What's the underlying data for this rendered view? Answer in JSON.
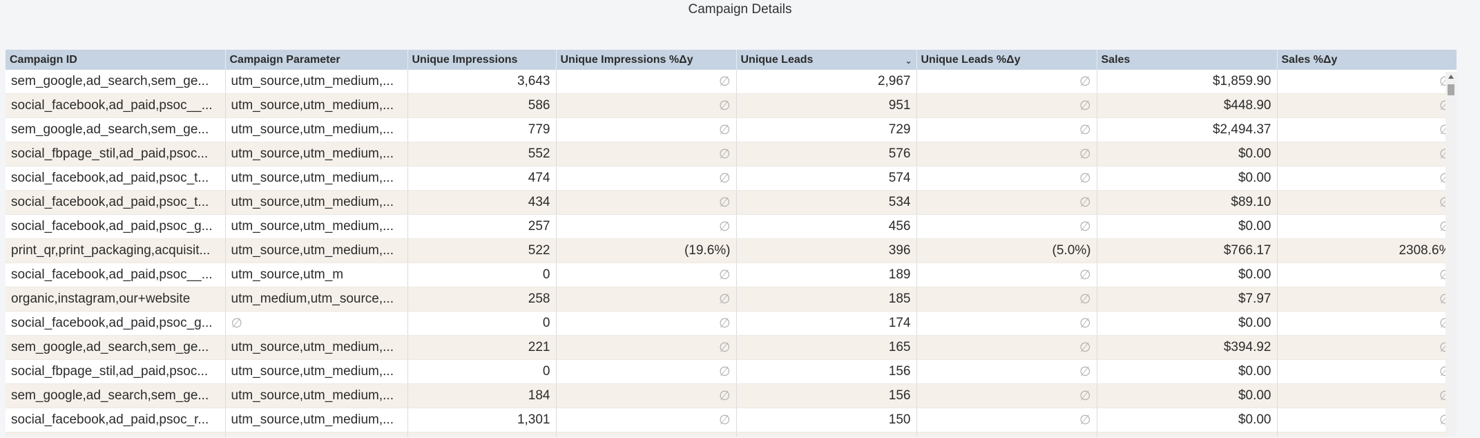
{
  "page": {
    "title": "Campaign Details"
  },
  "table": {
    "columns": [
      "Campaign ID",
      "Campaign Parameter",
      "Unique Impressions",
      "Unique Impressions %Δy",
      "Unique Leads",
      "Unique Leads %Δy",
      "Sales",
      "Sales %Δy"
    ],
    "sorted_column_icon": "chevron-down-icon",
    "null_symbol": "∅",
    "rows": [
      [
        "sem_google,ad_search,sem_ge...",
        "utm_source,utm_medium,...",
        "3,643",
        "∅",
        "2,967",
        "∅",
        "$1,859.90",
        "∅"
      ],
      [
        "social_facebook,ad_paid,psoc__...",
        "utm_source,utm_medium,...",
        "586",
        "∅",
        "951",
        "∅",
        "$448.90",
        "∅"
      ],
      [
        "sem_google,ad_search,sem_ge...",
        "utm_source,utm_medium,...",
        "779",
        "∅",
        "729",
        "∅",
        "$2,494.37",
        "∅"
      ],
      [
        "social_fbpage_stil,ad_paid,psoc...",
        "utm_source,utm_medium,...",
        "552",
        "∅",
        "576",
        "∅",
        "$0.00",
        "∅"
      ],
      [
        "social_facebook,ad_paid,psoc_t...",
        "utm_source,utm_medium,...",
        "474",
        "∅",
        "574",
        "∅",
        "$0.00",
        "∅"
      ],
      [
        "social_facebook,ad_paid,psoc_t...",
        "utm_source,utm_medium,...",
        "434",
        "∅",
        "534",
        "∅",
        "$89.10",
        "∅"
      ],
      [
        "social_facebook,ad_paid,psoc_g...",
        "utm_source,utm_medium,...",
        "257",
        "∅",
        "456",
        "∅",
        "$0.00",
        "∅"
      ],
      [
        "print_qr,print_packaging,acquisit...",
        "utm_source,utm_medium,...",
        "522",
        "(19.6%)",
        "396",
        "(5.0%)",
        "$766.17",
        "2308.6%"
      ],
      [
        "social_facebook,ad_paid,psoc__...",
        "utm_source,utm_m",
        "0",
        "∅",
        "189",
        "∅",
        "$0.00",
        "∅"
      ],
      [
        "organic,instagram,our+website",
        "utm_medium,utm_source,...",
        "258",
        "∅",
        "185",
        "∅",
        "$7.97",
        "∅"
      ],
      [
        "social_facebook,ad_paid,psoc_g...",
        "∅",
        "0",
        "∅",
        "174",
        "∅",
        "$0.00",
        "∅"
      ],
      [
        "sem_google,ad_search,sem_ge...",
        "utm_source,utm_medium,...",
        "221",
        "∅",
        "165",
        "∅",
        "$394.92",
        "∅"
      ],
      [
        "social_fbpage_stil,ad_paid,psoc...",
        "utm_source,utm_medium,...",
        "0",
        "∅",
        "156",
        "∅",
        "$0.00",
        "∅"
      ],
      [
        "sem_google,ad_search,sem_ge...",
        "utm_source,utm_medium,...",
        "184",
        "∅",
        "156",
        "∅",
        "$0.00",
        "∅"
      ],
      [
        "social_facebook,ad_paid,psoc_r...",
        "utm_source,utm_medium,...",
        "1,301",
        "∅",
        "150",
        "∅",
        "$0.00",
        "∅"
      ],
      [
        "",
        "",
        "",
        "",
        "",
        "",
        "",
        ""
      ]
    ]
  }
}
